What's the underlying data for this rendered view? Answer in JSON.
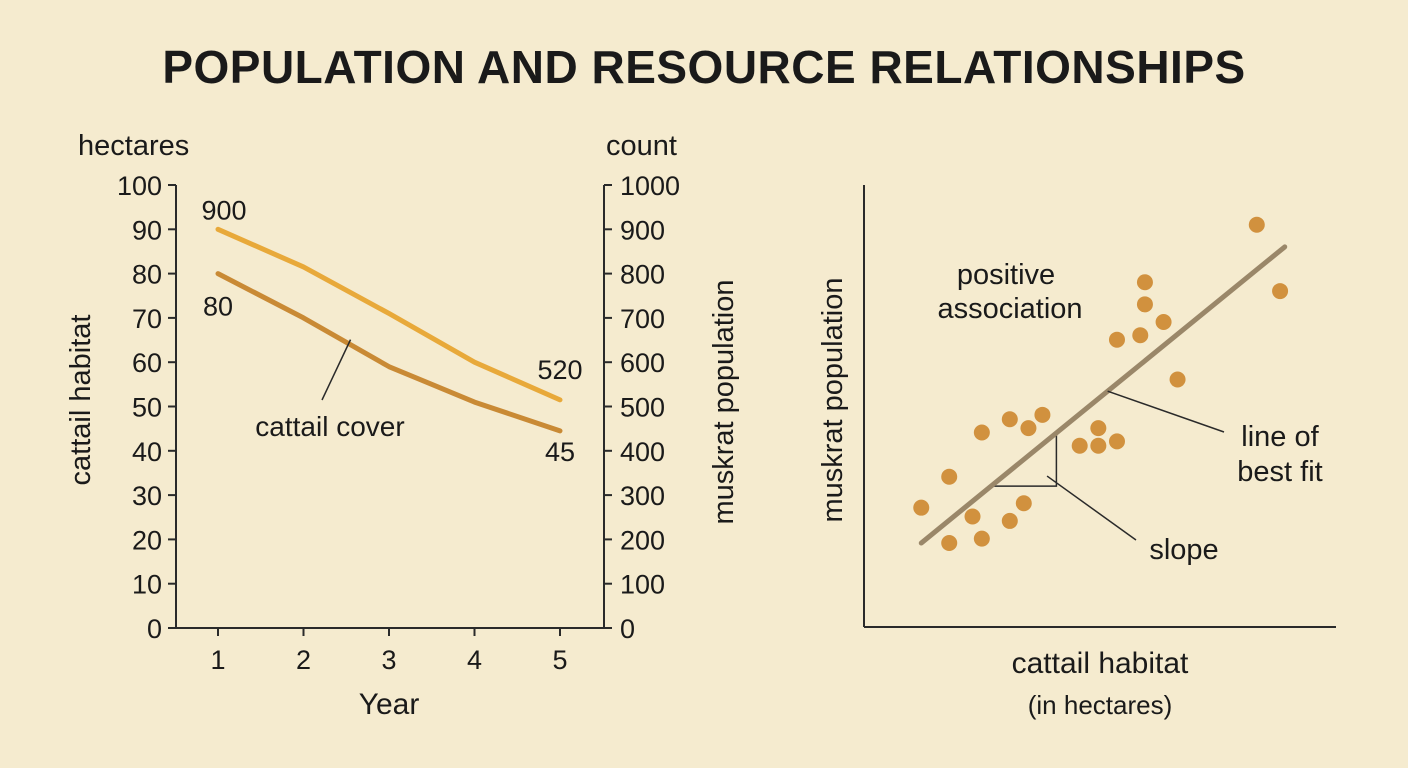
{
  "title": "POPULATION AND RESOURCE RELATIONSHIPS",
  "chart_data": [
    {
      "type": "line",
      "x": [
        1,
        2,
        3,
        4,
        5
      ],
      "xlabel": "Year",
      "y_left": {
        "unit": "hectares",
        "label": "cattail habitat",
        "ticks": [
          0,
          10,
          20,
          30,
          40,
          50,
          60,
          70,
          80,
          90,
          100
        ],
        "range": [
          0,
          100
        ]
      },
      "y_right": {
        "unit": "count",
        "label": "muskrat population",
        "ticks": [
          0,
          100,
          200,
          300,
          400,
          500,
          600,
          700,
          800,
          900,
          1000
        ],
        "range": [
          0,
          1000
        ]
      },
      "series": [
        {
          "axis": "right",
          "color": "#e8a93a",
          "values": [
            900,
            815,
            710,
            600,
            515
          ],
          "start_label": "900",
          "end_label": "520"
        },
        {
          "name": "cattail cover",
          "axis": "left",
          "color": "#c98a35",
          "values": [
            80,
            70,
            59,
            51,
            44.5
          ],
          "start_label": "80",
          "end_label": "45"
        }
      ]
    },
    {
      "type": "scatter",
      "xlabel": "cattail habitat",
      "xlabel_sub": "(in hectares)",
      "ylabel": "muskrat population",
      "point_color": "#d1913e",
      "trend_color": "#9a8769",
      "xlim": [
        0,
        100
      ],
      "ylim": [
        0,
        100
      ],
      "points": [
        [
          11,
          27
        ],
        [
          17,
          19
        ],
        [
          17,
          34
        ],
        [
          22,
          25
        ],
        [
          24,
          20
        ],
        [
          24,
          44
        ],
        [
          30,
          24
        ],
        [
          30,
          47
        ],
        [
          33,
          28
        ],
        [
          34,
          45
        ],
        [
          37,
          48
        ],
        [
          45,
          41
        ],
        [
          49,
          41
        ],
        [
          49,
          45
        ],
        [
          53,
          42
        ],
        [
          53,
          65
        ],
        [
          58,
          66
        ],
        [
          59,
          73
        ],
        [
          59,
          78
        ],
        [
          63,
          69
        ],
        [
          66,
          56
        ],
        [
          83,
          91
        ],
        [
          88,
          76
        ]
      ],
      "trend": {
        "x": [
          11,
          89
        ],
        "y": [
          19,
          86
        ]
      },
      "annotations": {
        "positive": [
          "positive",
          "association"
        ],
        "best_fit": [
          "line of",
          "best fit"
        ],
        "slope": "slope"
      }
    }
  ]
}
